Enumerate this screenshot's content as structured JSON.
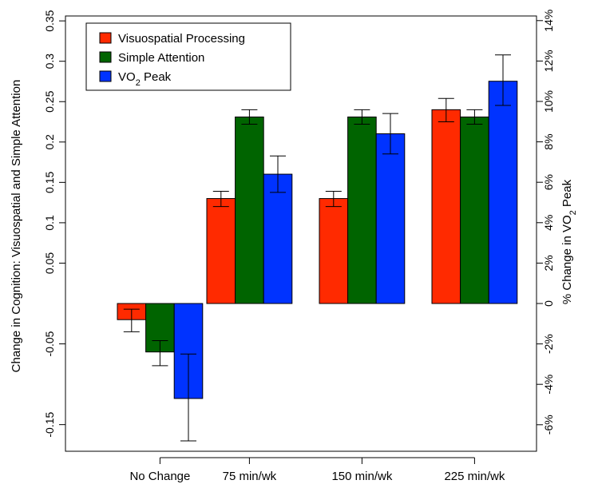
{
  "chart_data": {
    "type": "bar",
    "categories": [
      "No Change",
      "75 min/wk",
      "150 min/wk",
      "225 min/wk"
    ],
    "series": [
      {
        "name": "Visuospatial Processing",
        "axis": "left",
        "color": "#ff2a00",
        "values": [
          -0.02,
          0.13,
          0.13,
          0.24
        ],
        "err_low": [
          -0.035,
          0.12,
          0.12,
          0.225
        ],
        "err_high": [
          -0.007,
          0.139,
          0.139,
          0.254
        ]
      },
      {
        "name": "Simple Attention",
        "axis": "left",
        "color": "#006400",
        "values": [
          -0.06,
          0.231,
          0.231,
          0.231
        ],
        "err_low": [
          -0.077,
          0.222,
          0.222,
          0.222
        ],
        "err_high": [
          -0.046,
          0.24,
          0.24,
          0.24
        ]
      },
      {
        "name": "VO2 Peak",
        "axis": "right",
        "color": "#0033ff",
        "values": [
          -4.7,
          6.4,
          8.4,
          11.0
        ],
        "err_low": [
          -6.8,
          5.5,
          7.4,
          9.8
        ],
        "err_high": [
          -2.5,
          7.3,
          9.4,
          12.3
        ]
      }
    ],
    "y_left": {
      "label": "Change in Cognition: Visuospatial and Simple Attention",
      "ylim": [
        -0.15,
        0.35
      ],
      "ticks": [
        -0.15,
        -0.05,
        0.05,
        0.1,
        0.15,
        0.2,
        0.25,
        0.3,
        0.35
      ],
      "tick_labels": [
        "-0.15",
        "-0.05",
        "0.05",
        "0.1",
        "0.15",
        "0.2",
        "0.25",
        "0.3",
        "0.35"
      ]
    },
    "y_right": {
      "label_pre": "% Change in VO",
      "label_sub": "2",
      "label_post": " Peak",
      "ylim": [
        -6,
        14
      ],
      "ticks": [
        -6,
        -4,
        -2,
        0,
        2,
        4,
        6,
        8,
        10,
        12,
        14
      ],
      "tick_labels": [
        "-6%",
        "-4%",
        "-2%",
        "0",
        "2%",
        "4%",
        "6%",
        "8%",
        "10%",
        "12%",
        "14%"
      ]
    },
    "legend": {
      "position": "top-left",
      "entries": [
        {
          "text": "Visuospatial Processing",
          "sub": "",
          "post": "",
          "color": "#ff2a00"
        },
        {
          "text": "Simple Attention",
          "sub": "",
          "post": "",
          "color": "#006400"
        },
        {
          "text": "VO",
          "sub": "2",
          "post": " Peak",
          "color": "#0033ff"
        }
      ]
    },
    "grid": false
  }
}
